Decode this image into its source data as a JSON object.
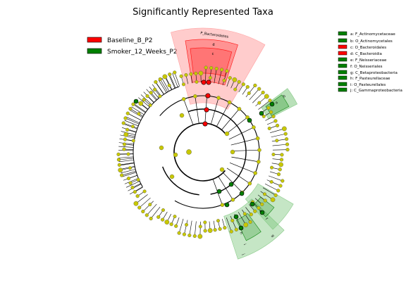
{
  "title": "Significantly Represented Taxa",
  "colors": {
    "baseline": "#ff0000",
    "smoker": "#008000",
    "neutral_node": "#c8c800",
    "baseline_shade": "#ff9a9a",
    "smoker_shade": "#7fc77f"
  },
  "legend": [
    {
      "label": "Baseline_B_P2",
      "color": "#ff0000"
    },
    {
      "label": "Smoker_12_Weeks_P2",
      "color": "#008000"
    }
  ],
  "clade_key": [
    {
      "label": "a: F_Actinomycetaceae",
      "color": "#008000"
    },
    {
      "label": "b: O_Actinomycetales",
      "color": "#008000"
    },
    {
      "label": "c: O_Bacteroidales",
      "color": "#ff0000"
    },
    {
      "label": "d: C_Bacteroidia",
      "color": "#ff0000"
    },
    {
      "label": "e: F_Neisseriaceae",
      "color": "#008000"
    },
    {
      "label": "f: O_Neisseriales",
      "color": "#008000"
    },
    {
      "label": "g: C_Betaproteobacteria",
      "color": "#008000"
    },
    {
      "label": "h: F_Pasteurellaceae",
      "color": "#008000"
    },
    {
      "label": "i: O_Pasteurellales",
      "color": "#008000"
    },
    {
      "label": "j: C_Gammaproteobacteria",
      "color": "#008000"
    }
  ],
  "clade_labels": {
    "phylum_bacteroidetes": "P_Bacteroidetes",
    "d": "d",
    "c": "c",
    "b": "b",
    "a": "a",
    "j": "j",
    "i": "i",
    "h": "h",
    "g": "g",
    "f": "f",
    "e": "e"
  }
}
